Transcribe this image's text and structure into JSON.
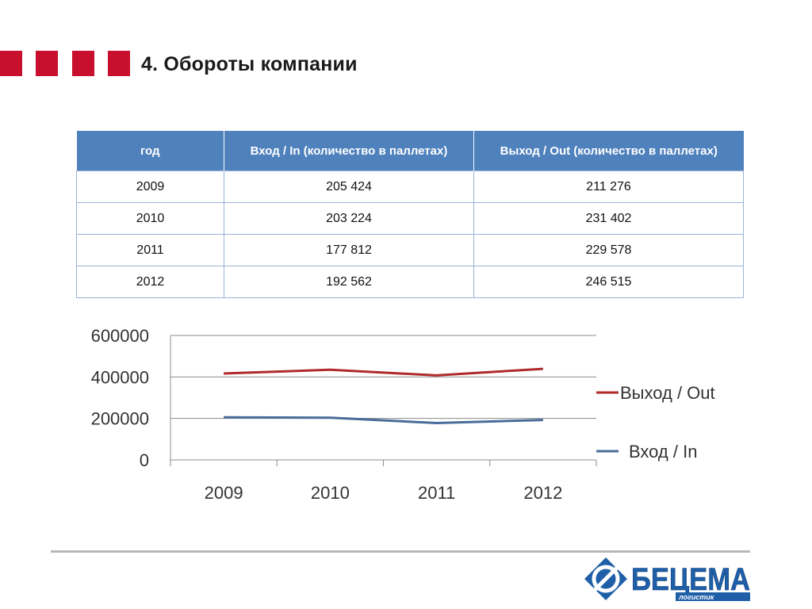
{
  "slide": {
    "title": "4. Обороты компании"
  },
  "table": {
    "headers": [
      "год",
      "Вход / In (количество в паллетах)",
      "Выход / Out (количество в паллетах)"
    ],
    "rows": [
      [
        "2009",
        "205 424",
        "211 276"
      ],
      [
        "2010",
        "203 224",
        "231 402"
      ],
      [
        "2011",
        "177 812",
        "229 578"
      ],
      [
        "2012",
        "192 562",
        "246 515"
      ]
    ]
  },
  "chart_data": {
    "type": "line",
    "stacked": true,
    "categories": [
      "2009",
      "2010",
      "2011",
      "2012"
    ],
    "series": [
      {
        "name": "Вход / In",
        "color": "#4a6c9b",
        "values": [
          205424,
          203224,
          177812,
          192562
        ]
      },
      {
        "name": "Выход / Out",
        "color": "#b02a2a",
        "values": [
          211276,
          231402,
          229578,
          246515
        ]
      }
    ],
    "yticks": [
      0,
      200000,
      400000,
      600000
    ],
    "ylim": [
      0,
      600000
    ],
    "grid": true,
    "legend": "right",
    "legend_order": [
      "Выход / Out",
      "Вход / In"
    ]
  },
  "logo": {
    "text": "БЕЦЕМА",
    "subtext": "логистик",
    "colors": {
      "blue": "#1f5fa8",
      "white": "#ffffff"
    }
  }
}
